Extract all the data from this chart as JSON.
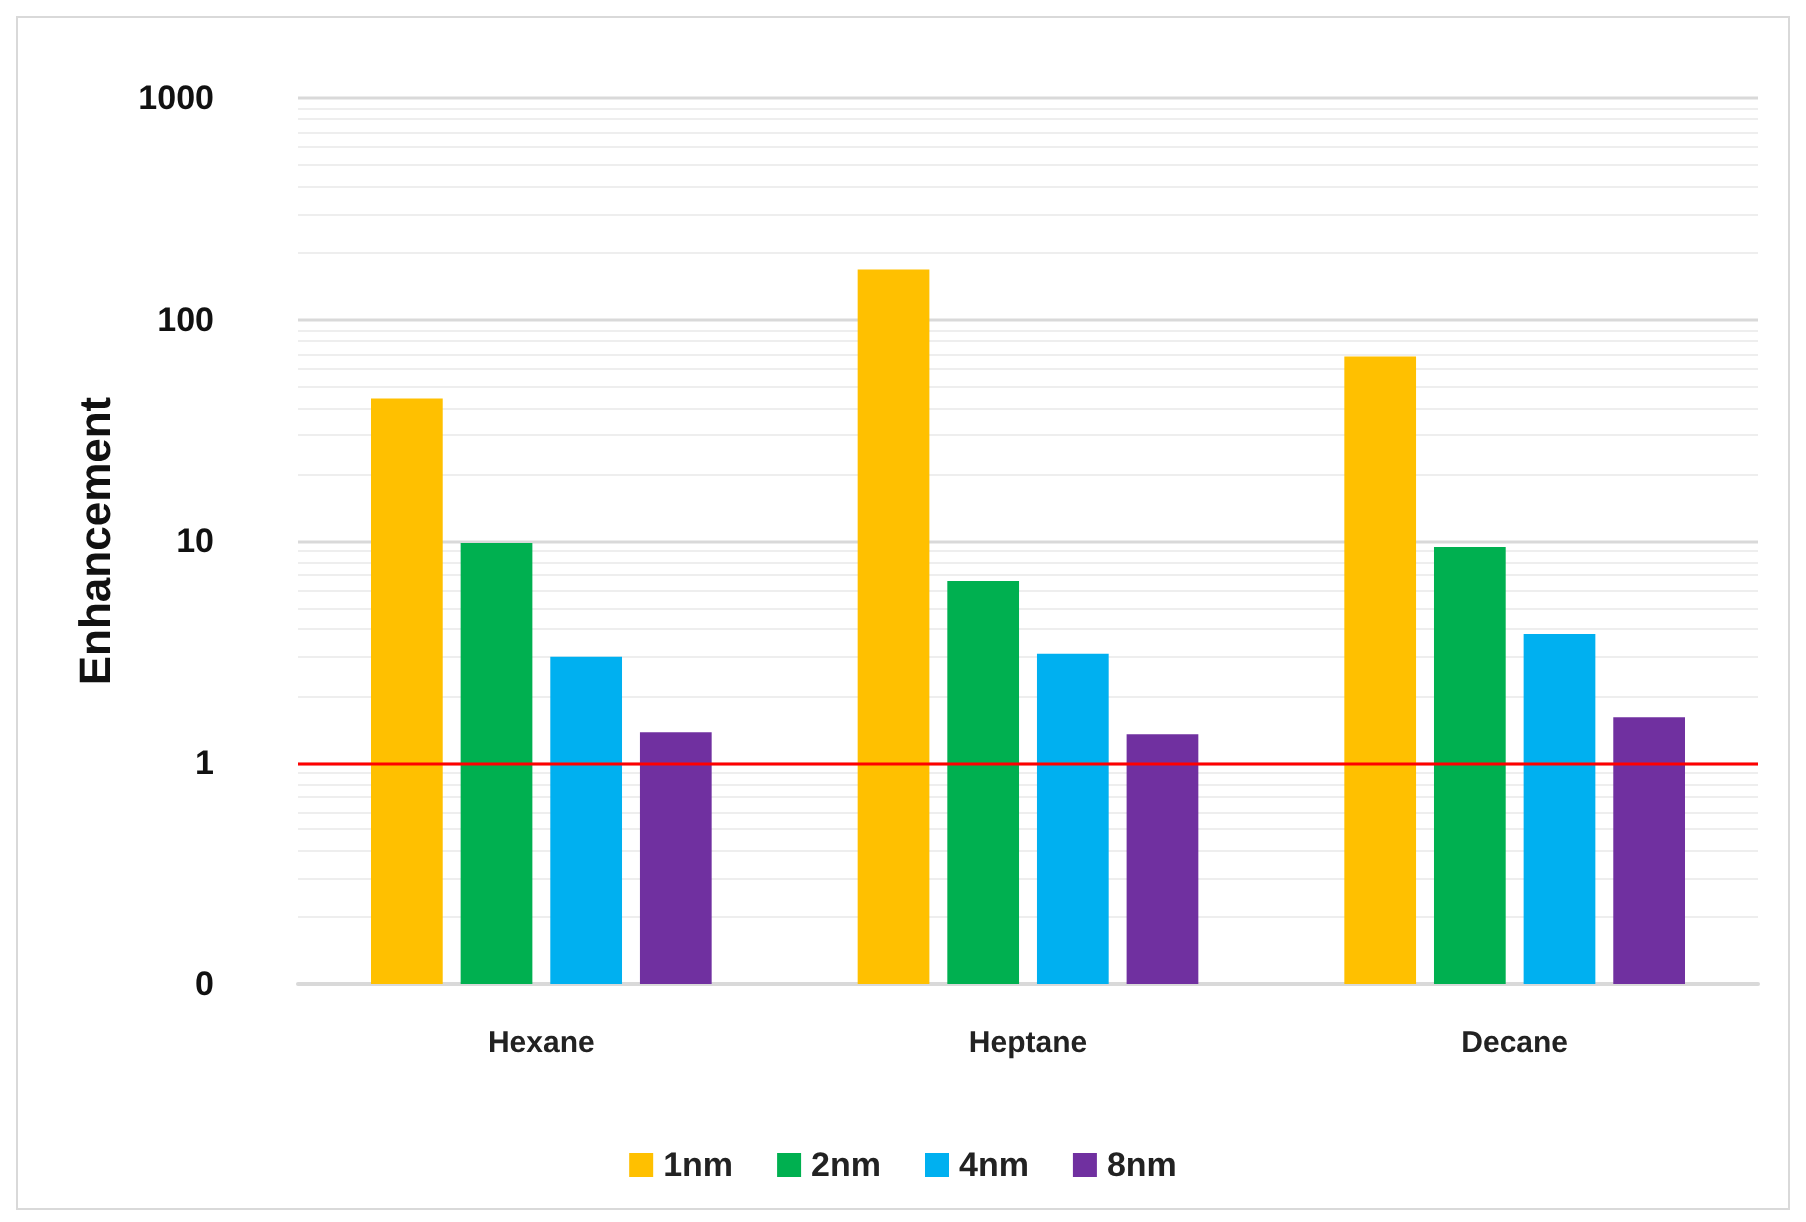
{
  "chart_data": {
    "type": "bar",
    "ylabel": "Enhancement",
    "categories": [
      "Hexane",
      "Heptane",
      "Decane"
    ],
    "series": [
      {
        "name": "1nm",
        "color": "#ffc000",
        "values": [
          44,
          168,
          68
        ]
      },
      {
        "name": "2nm",
        "color": "#00b050",
        "values": [
          9.8,
          6.6,
          9.4
        ]
      },
      {
        "name": "4nm",
        "color": "#00b0f0",
        "values": [
          3.0,
          3.1,
          3.8
        ]
      },
      {
        "name": "8nm",
        "color": "#7030a0",
        "values": [
          1.37,
          1.34,
          1.6
        ]
      }
    ],
    "log": "y",
    "ylim": [
      0.1,
      1000
    ],
    "yticks": [
      {
        "value": 0.1,
        "label": "0"
      },
      1,
      10,
      100,
      1000
    ],
    "grid": "y",
    "legend": "bottom",
    "ref_lines": [
      {
        "axis": "y",
        "value": 1,
        "color": "#ff0000"
      }
    ]
  }
}
